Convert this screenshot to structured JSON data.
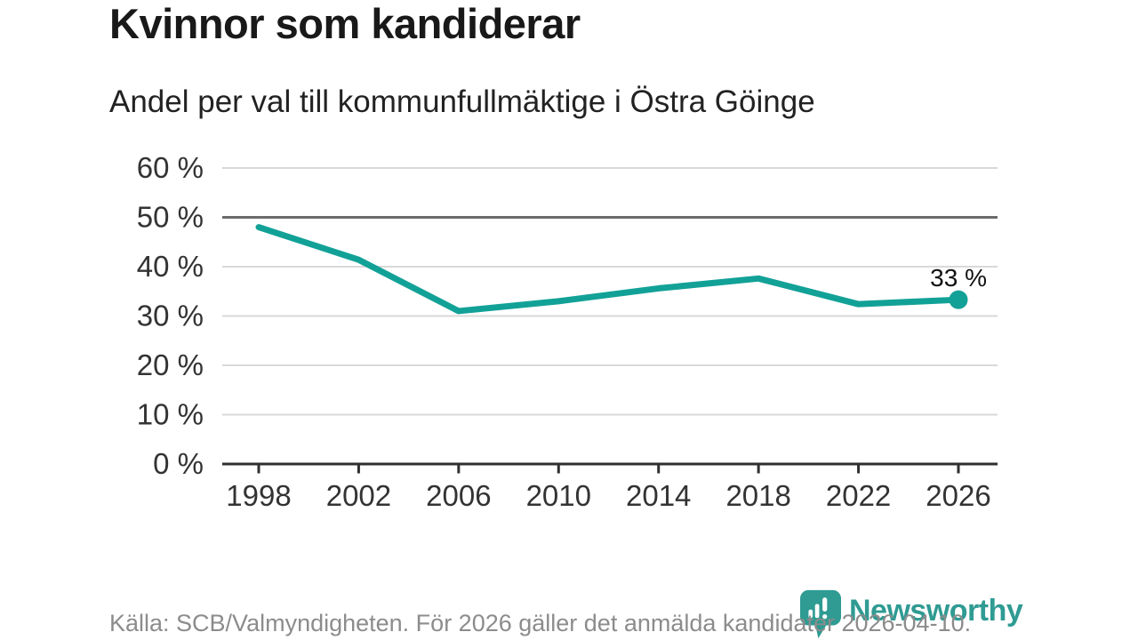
{
  "page": {
    "title": "Kvinnor som kandiderar",
    "subtitle": "Andel per val till kommunfullmäktige i Östra Göinge",
    "footer_source": "Källa: SCB/Valmyndigheten. För 2026 gäller det anmälda kandidater 2026-04-10.",
    "logo_text": "Newsworthy"
  },
  "colors": {
    "line": "#12a197",
    "logo": "#2f9b93",
    "grid_light": "#d9d9d9",
    "grid_dark": "#6b6b6b",
    "axis": "#2f2f2f",
    "tick_label": "#333333",
    "end_label": "#111111",
    "footer_text": "#8c8c8c"
  },
  "chart_data": {
    "type": "line",
    "title": "Kvinnor som kandiderar",
    "subtitle": "Andel per val till kommunfullmäktige i Östra Göinge",
    "categories": [
      "1998",
      "2002",
      "2006",
      "2010",
      "2014",
      "2018",
      "2022",
      "2026"
    ],
    "values": [
      48,
      41.4,
      31,
      33,
      35.6,
      37.6,
      32.4,
      33.3
    ],
    "yticks": [
      "0 %",
      "10 %",
      "20 %",
      "30 %",
      "40 %",
      "50 %",
      "60 %"
    ],
    "ylim": [
      0,
      60
    ],
    "ytick_step": 10,
    "reference_line": 50,
    "end_label": "33 %",
    "grid": true,
    "legend": "none",
    "xlabel": "",
    "ylabel": ""
  }
}
